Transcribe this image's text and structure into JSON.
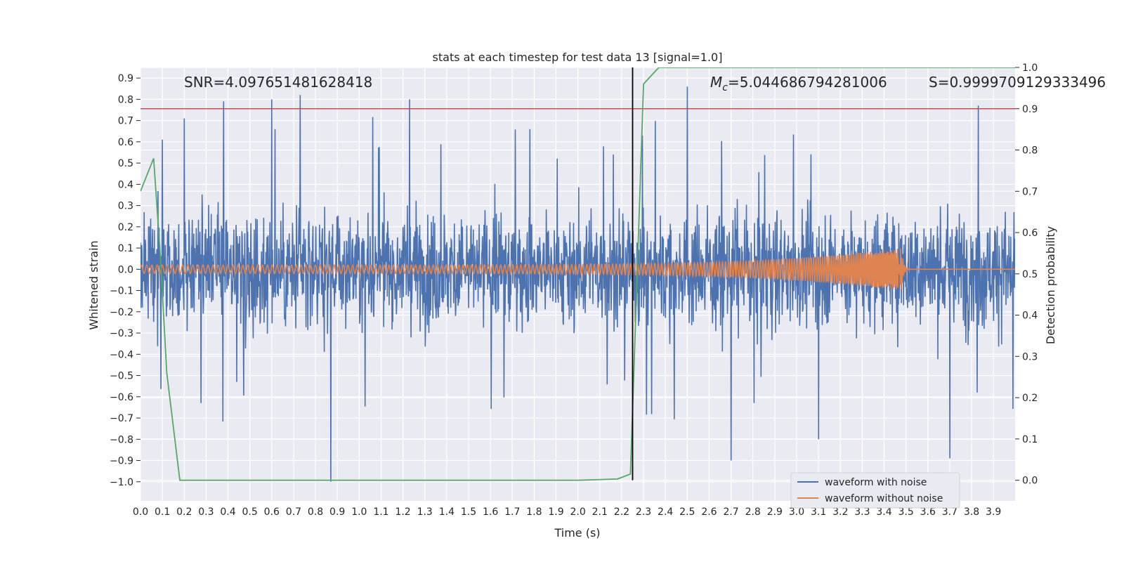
{
  "chart_data": {
    "type": "line",
    "title": "stats at each timestep for test data 13 [signal=1.0]",
    "xlabel": "Time (s)",
    "ylabel": "Whitened strain",
    "y2label": "Detection probability",
    "xlim": [
      0.0,
      3.999
    ],
    "ylim": [
      -1.09,
      0.95
    ],
    "y2lim": [
      -0.05,
      1.0
    ],
    "grid": true,
    "legend_position": "lower-right",
    "annotations": {
      "snr": "SNR=4.097651481628418",
      "mc_symbol": "M",
      "mc_subscript": "c",
      "mc_value": "=5.044686794281006",
      "s": "S=0.9999709129333496"
    },
    "xticks": [
      "0.0",
      "0.1",
      "0.2",
      "0.3",
      "0.4",
      "0.5",
      "0.6",
      "0.7",
      "0.8",
      "0.9",
      "1.0",
      "1.1",
      "1.2",
      "1.3",
      "1.4",
      "1.5",
      "1.6",
      "1.7",
      "1.8",
      "1.9",
      "2.0",
      "2.1",
      "2.2",
      "2.3",
      "2.4",
      "2.5",
      "2.6",
      "2.7",
      "2.8",
      "2.9",
      "3.0",
      "3.1",
      "3.2",
      "3.3",
      "3.4",
      "3.5",
      "3.6",
      "3.7",
      "3.8",
      "3.9"
    ],
    "yticks": [
      "−1.0",
      "−0.9",
      "−0.8",
      "−0.7",
      "−0.6",
      "−0.5",
      "−0.4",
      "−0.3",
      "−0.2",
      "−0.1",
      "0.0",
      "0.1",
      "0.2",
      "0.3",
      "0.4",
      "0.5",
      "0.6",
      "0.7",
      "0.8",
      "0.9"
    ],
    "y2ticks": [
      "0.0",
      "0.1",
      "0.2",
      "0.3",
      "0.4",
      "0.5",
      "0.6",
      "0.7",
      "0.8",
      "0.9",
      "1.0"
    ],
    "threshold_line": {
      "y2": 0.9,
      "color": "#c44e52"
    },
    "vertical_line": {
      "x": 2.25,
      "color": "#000000"
    },
    "series": [
      {
        "name": "waveform with noise",
        "color": "#4c72b0",
        "axis": "left",
        "noise_envelope": {
          "typical_max": 0.45,
          "peak_max": 0.86,
          "peak_min": -1.0
        },
        "notable_peaks": [
          [
            0.1,
            0.61
          ],
          [
            0.2,
            0.71
          ],
          [
            0.38,
            0.79
          ],
          [
            0.6,
            0.8
          ],
          [
            0.73,
            0.82
          ],
          [
            0.87,
            -1.0
          ],
          [
            1.23,
            0.8
          ],
          [
            1.78,
            0.66
          ],
          [
            2.5,
            0.86
          ],
          [
            2.7,
            -0.9
          ],
          [
            3.1,
            -0.8
          ],
          [
            3.7,
            -0.89
          ],
          [
            3.83,
            0.77
          ]
        ]
      },
      {
        "name": "waveform without noise",
        "color": "#dd8452",
        "axis": "left",
        "chirp": {
          "start_amplitude": 0.02,
          "peak_amplitude": 0.1,
          "merger_time": 3.48,
          "end_time": 3.999
        }
      },
      {
        "name": "",
        "color": "#55a868",
        "axis": "right",
        "x": [
          0.0,
          0.06,
          0.09,
          0.12,
          0.18,
          0.25,
          0.5,
          1.0,
          1.5,
          2.0,
          2.18,
          2.24,
          2.3,
          2.37,
          2.5,
          3.0,
          3.5,
          3.999
        ],
        "values": [
          0.7,
          0.78,
          0.55,
          0.26,
          0.0,
          0.0,
          0.0,
          0.0,
          0.0,
          0.0,
          0.003,
          0.015,
          0.96,
          1.0,
          1.0,
          1.0,
          1.0,
          1.0
        ]
      }
    ],
    "legend": [
      "waveform with noise",
      "waveform without noise"
    ]
  }
}
